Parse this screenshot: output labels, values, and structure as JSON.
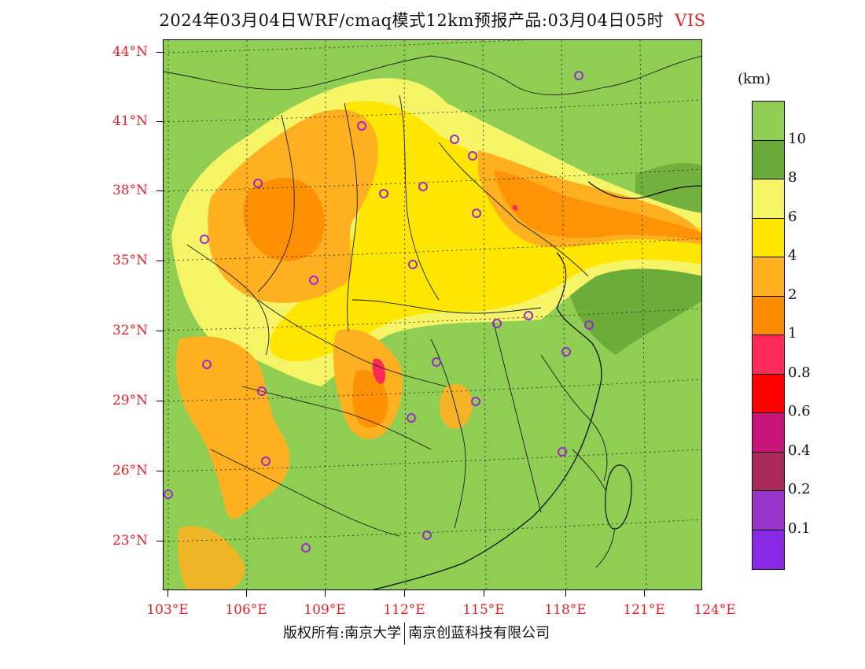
{
  "title": {
    "text": "2024年03月04日WRF/cmaq模式12km预报产品:03月04日05时",
    "variable": "VIS"
  },
  "legend": {
    "unit": "(km)",
    "labels": [
      "10",
      "8",
      "6",
      "4",
      "2",
      "1",
      "0.8",
      "0.6",
      "0.4",
      "0.2",
      "0.1"
    ],
    "colors": [
      "#8fce52",
      "#6aaa38",
      "#f4f466",
      "#ffe600",
      "#ffb020",
      "#ff8c00",
      "#ff2a58",
      "#ff0000",
      "#c8147a",
      "#a82a56",
      "#9636c8",
      "#8a2ae6"
    ]
  },
  "axes": {
    "lat_labels": [
      "44°N",
      "41°N",
      "38°N",
      "35°N",
      "32°N",
      "29°N",
      "26°N",
      "23°N"
    ],
    "lon_labels": [
      "103°E",
      "106°E",
      "109°E",
      "112°E",
      "115°E",
      "118°E",
      "121°E",
      "124°E"
    ]
  },
  "footer": {
    "copyright": "版权所有:南京大学",
    "company": "南京创蓝科技有限公司"
  },
  "map_colors": {
    "background": "#8fce52",
    "dark_green": "#6aaa38",
    "light_yellow": "#f4f466",
    "yellow": "#ffe600",
    "light_orange": "#ffb020",
    "orange": "#ff8c00",
    "pink": "#ff2a58",
    "station_marker": "#9a2ad0"
  }
}
